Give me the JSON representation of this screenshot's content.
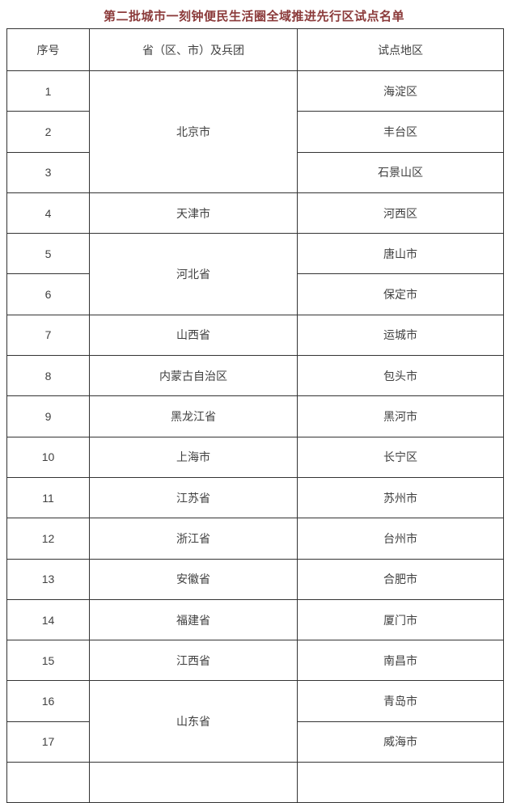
{
  "page": {
    "title": "第二批城市一刻钟便民生活圈全域推进先行区试点名单",
    "title_color": "#8b3a3a",
    "background_color": "#ffffff",
    "border_color": "#333333",
    "text_color": "#404040"
  },
  "chart_data": {
    "type": "table",
    "title": "第二批城市一刻钟便民生活圈全域推进先行区试点名单",
    "columns": [
      "序号",
      "省（区、市）及兵团",
      "试点地区"
    ],
    "rows": [
      [
        "1",
        "北京市",
        "海淀区"
      ],
      [
        "2",
        "北京市",
        "丰台区"
      ],
      [
        "3",
        "北京市",
        "石景山区"
      ],
      [
        "4",
        "天津市",
        "河西区"
      ],
      [
        "5",
        "河北省",
        "唐山市"
      ],
      [
        "6",
        "河北省",
        "保定市"
      ],
      [
        "7",
        "山西省",
        "运城市"
      ],
      [
        "8",
        "内蒙古自治区",
        "包头市"
      ],
      [
        "9",
        "黑龙江省",
        "黑河市"
      ],
      [
        "10",
        "上海市",
        "长宁区"
      ],
      [
        "11",
        "江苏省",
        "苏州市"
      ],
      [
        "12",
        "浙江省",
        "台州市"
      ],
      [
        "13",
        "安徽省",
        "合肥市"
      ],
      [
        "14",
        "福建省",
        "厦门市"
      ],
      [
        "15",
        "江西省",
        "南昌市"
      ],
      [
        "16",
        "山东省",
        "青岛市"
      ],
      [
        "17",
        "山东省",
        "威海市"
      ]
    ]
  },
  "table": {
    "headers": {
      "no": "序号",
      "province": "省（区、市）及兵团",
      "area": "试点地区"
    },
    "rows": [
      {
        "no": "1",
        "province": "北京市",
        "area": "海淀区"
      },
      {
        "no": "2",
        "area": "丰台区"
      },
      {
        "no": "3",
        "area": "石景山区"
      },
      {
        "no": "4",
        "province": "天津市",
        "area": "河西区"
      },
      {
        "no": "5",
        "province": "河北省",
        "area": "唐山市"
      },
      {
        "no": "6",
        "area": "保定市"
      },
      {
        "no": "7",
        "province": "山西省",
        "area": "运城市"
      },
      {
        "no": "8",
        "province": "内蒙古自治区",
        "area": "包头市"
      },
      {
        "no": "9",
        "province": "黑龙江省",
        "area": "黑河市"
      },
      {
        "no": "10",
        "province": "上海市",
        "area": "长宁区"
      },
      {
        "no": "11",
        "province": "江苏省",
        "area": "苏州市"
      },
      {
        "no": "12",
        "province": "浙江省",
        "area": "台州市"
      },
      {
        "no": "13",
        "province": "安徽省",
        "area": "合肥市"
      },
      {
        "no": "14",
        "province": "福建省",
        "area": "厦门市"
      },
      {
        "no": "15",
        "province": "江西省",
        "area": "南昌市"
      },
      {
        "no": "16",
        "province": "山东省",
        "area": "青岛市"
      },
      {
        "no": "17",
        "area": "威海市"
      },
      {
        "no": "",
        "province": "",
        "area": ""
      }
    ]
  }
}
